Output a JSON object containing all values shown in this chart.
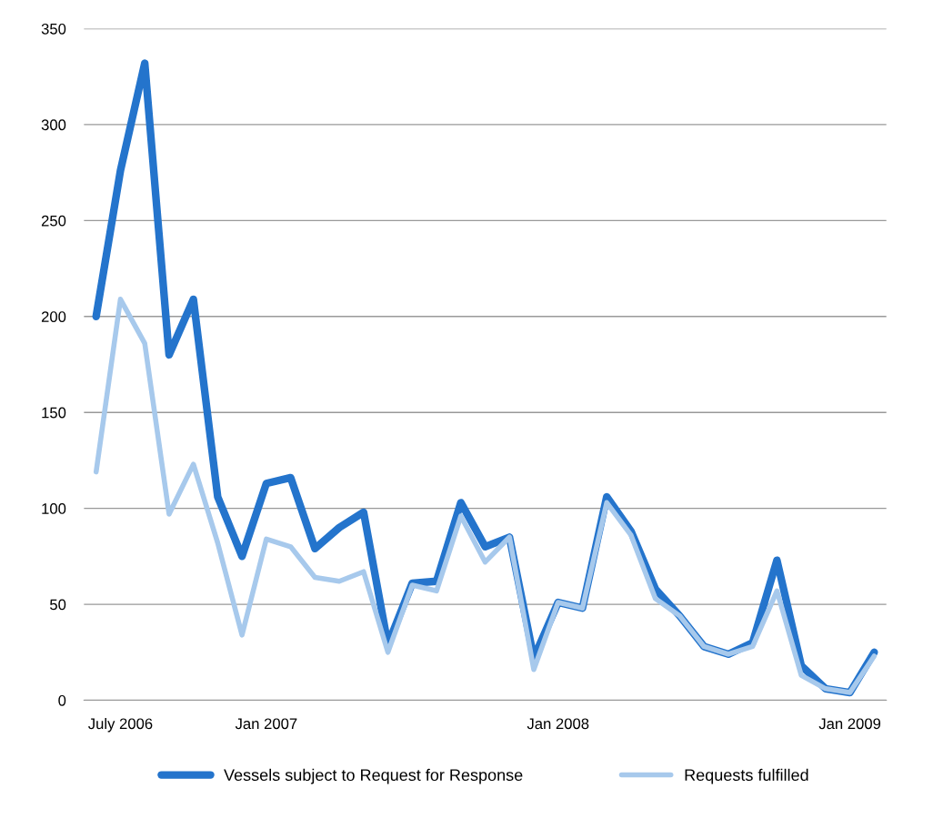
{
  "chart_data": {
    "type": "line",
    "categories": [
      null,
      "July 2006",
      null,
      null,
      null,
      null,
      null,
      "Jan 2007",
      null,
      null,
      null,
      null,
      null,
      null,
      null,
      null,
      null,
      null,
      null,
      "Jan 2008",
      null,
      null,
      null,
      null,
      null,
      null,
      null,
      null,
      null,
      null,
      null,
      "Jan 2009",
      null
    ],
    "series": [
      {
        "name": "Vessels subject to Request for Response",
        "color": "#2474cc",
        "values": [
          200,
          276,
          332,
          180,
          209,
          106,
          75,
          113,
          116,
          79,
          90,
          98,
          29,
          61,
          62,
          103,
          80,
          85,
          22,
          51,
          48,
          106,
          88,
          58,
          44,
          28,
          24,
          30,
          73,
          18,
          6,
          4,
          25
        ]
      },
      {
        "name": "Requests fulfilled",
        "color": "#a7c9ec",
        "values": [
          119,
          209,
          186,
          97,
          123,
          82,
          34,
          84,
          80,
          64,
          62,
          67,
          25,
          60,
          57,
          96,
          72,
          85,
          16,
          51,
          48,
          103,
          86,
          53,
          44,
          28,
          24,
          28,
          57,
          13,
          6,
          4,
          23
        ]
      }
    ],
    "ylim": [
      0,
      350
    ],
    "yticks": [
      0,
      50,
      100,
      150,
      200,
      250,
      300,
      350
    ],
    "grid": "y",
    "legend": "bottom",
    "marker": "none",
    "line_style": "solid"
  }
}
